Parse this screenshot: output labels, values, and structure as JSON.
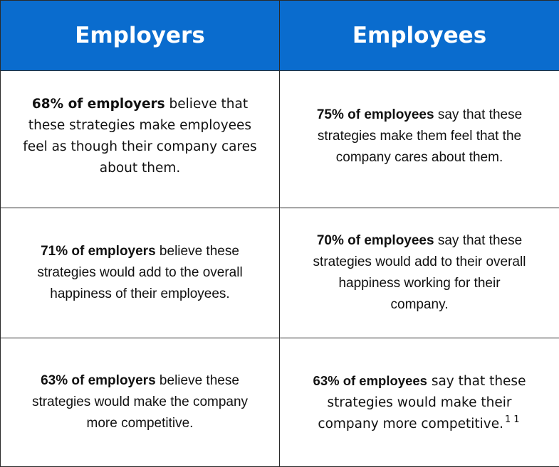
{
  "table": {
    "header": [
      "Employers",
      "Employees"
    ],
    "rows": [
      [
        {
          "bold": "68% of employers",
          "text": " believe that these strategies make employees feel as though their company cares about them."
        },
        {
          "bold": "75% of employees",
          "text": " say that these strategies make them feel that the company cares about them."
        }
      ],
      [
        {
          "bold": "71% of employers",
          "text": " believe these strategies would add to the overall happiness of their employees."
        },
        {
          "bold": "70% of employees",
          "text": " say that these strategies would add to their overall happiness working for their company."
        }
      ],
      [
        {
          "bold": "63% of employers",
          "text": " believe these strategies would make the company more competitive."
        },
        {
          "bold": "63% of employees",
          "text": " say that these strategies would make their company more competitive.",
          "marks": [
            "1",
            "1"
          ]
        }
      ]
    ]
  }
}
